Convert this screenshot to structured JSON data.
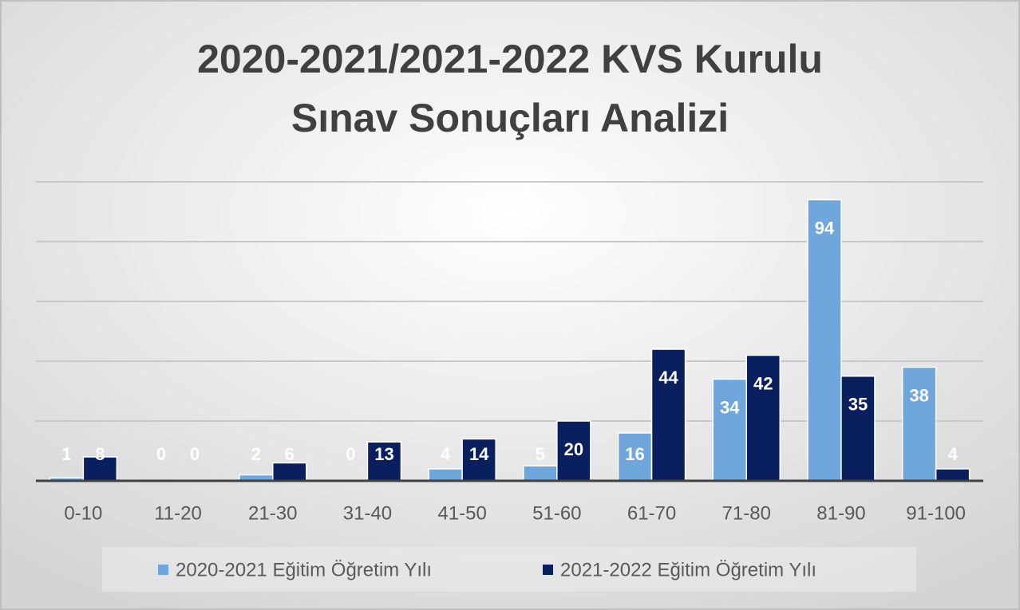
{
  "chart_data": {
    "type": "bar",
    "title": [
      "2020-2021/2021-2022 KVS Kurulu",
      "Sınav Sonuçları Analizi"
    ],
    "categories": [
      "0-10",
      "11-20",
      "21-30",
      "31-40",
      "41-50",
      "51-60",
      "61-70",
      "71-80",
      "81-90",
      "91-100"
    ],
    "series": [
      {
        "name": "2020-2021 Eğitim Öğretim Yılı",
        "color": "#6fa6dc",
        "values": [
          1,
          0,
          2,
          0,
          4,
          5,
          16,
          34,
          94,
          38
        ]
      },
      {
        "name": "2021-2022 Eğitim Öğretim Yılı",
        "color": "#0a1f5e",
        "values": [
          8,
          0,
          6,
          13,
          14,
          20,
          44,
          42,
          35,
          4
        ]
      }
    ],
    "ylim": [
      0,
      100
    ],
    "yticks": [
      0,
      20,
      40,
      60,
      80,
      100
    ],
    "grid": true,
    "legend": "bottom"
  }
}
